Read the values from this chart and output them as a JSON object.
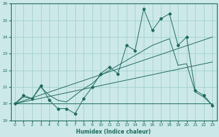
{
  "xlabel": "Humidex (Indice chaleur)",
  "xlim": [
    -0.5,
    23.5
  ],
  "ylim": [
    19,
    26
  ],
  "yticks": [
    19,
    20,
    21,
    22,
    23,
    24,
    25,
    26
  ],
  "xticks": [
    0,
    1,
    2,
    3,
    4,
    5,
    6,
    7,
    8,
    9,
    10,
    11,
    12,
    13,
    14,
    15,
    16,
    17,
    18,
    19,
    20,
    21,
    22,
    23
  ],
  "bg_color": "#cce8e8",
  "line_color": "#1e6b5e",
  "grid_color": "#99cccc",
  "series_main": {
    "x": [
      0,
      1,
      2,
      3,
      4,
      5,
      6,
      7,
      8,
      9,
      10,
      11,
      12,
      13,
      14,
      15,
      16,
      17,
      18,
      19,
      20,
      21,
      22,
      23
    ],
    "y": [
      20.0,
      20.5,
      20.3,
      21.1,
      20.2,
      19.7,
      19.7,
      19.4,
      20.3,
      21.0,
      21.8,
      22.2,
      21.8,
      23.5,
      23.2,
      25.7,
      24.4,
      25.1,
      25.4,
      23.5,
      24.0,
      20.8,
      20.5,
      19.9
    ]
  },
  "series_smooth": {
    "x": [
      0,
      1,
      2,
      3,
      4,
      5,
      6,
      7,
      8,
      9,
      10,
      11,
      12,
      13,
      14,
      15,
      16,
      17,
      18,
      19,
      20,
      21,
      22,
      23
    ],
    "y": [
      20.0,
      20.4,
      20.3,
      21.0,
      20.5,
      20.2,
      20.1,
      20.5,
      20.9,
      21.2,
      21.7,
      22.0,
      22.3,
      22.6,
      22.9,
      23.2,
      23.5,
      23.7,
      23.9,
      22.3,
      22.4,
      20.7,
      20.4,
      19.9
    ]
  },
  "trend_lines": [
    {
      "x": [
        0,
        23
      ],
      "y": [
        20.0,
        24.0
      ]
    },
    {
      "x": [
        0,
        23
      ],
      "y": [
        20.0,
        22.5
      ]
    },
    {
      "x": [
        0,
        23
      ],
      "y": [
        20.0,
        20.0
      ]
    }
  ]
}
